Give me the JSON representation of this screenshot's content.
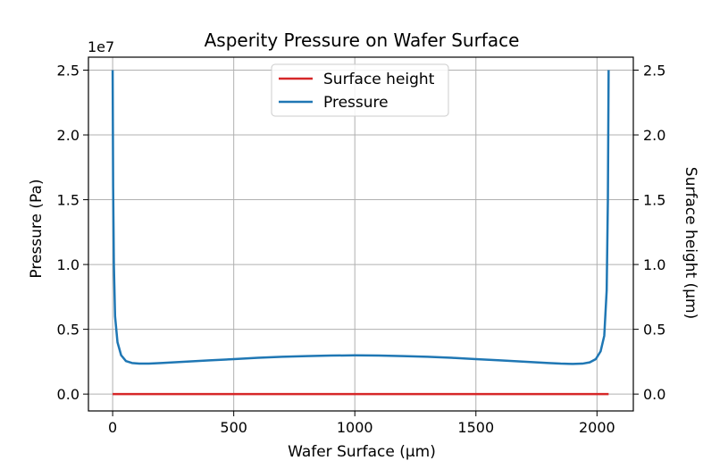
{
  "chart_data": {
    "type": "line",
    "title": "Asperity Pressure on Wafer Surface",
    "xlabel": "Wafer Surface (µm)",
    "ylabel_left": "Pressure (Pa)",
    "ylabel_right": "Surface height (µm)",
    "offset_text": "1e7",
    "xlim": [
      -100,
      2150
    ],
    "ylim_left": [
      -0.13,
      2.6
    ],
    "ylim_right": [
      -0.13,
      2.6
    ],
    "x_ticks": [
      0,
      500,
      1000,
      1500,
      2000
    ],
    "x_tick_labels": [
      "0",
      "500",
      "1000",
      "1500",
      "2000"
    ],
    "y_ticks": [
      0.0,
      0.5,
      1.0,
      1.5,
      2.0,
      2.5
    ],
    "y_tick_labels": [
      "0.0",
      "0.5",
      "1.0",
      "1.5",
      "2.0",
      "2.5"
    ],
    "grid": true,
    "legend_position": "top-center",
    "series": [
      {
        "name": "Surface height",
        "color": "#d62728",
        "axis": "right",
        "x": [
          0,
          2048
        ],
        "y": [
          0.0,
          0.0
        ]
      },
      {
        "name": "Pressure",
        "color": "#1f77b4",
        "axis": "left",
        "x": [
          0,
          2,
          5,
          10,
          20,
          35,
          55,
          80,
          110,
          150,
          200,
          300,
          400,
          500,
          600,
          700,
          800,
          900,
          1000,
          1100,
          1200,
          1300,
          1400,
          1500,
          1600,
          1700,
          1800,
          1850,
          1900,
          1940,
          1970,
          1995,
          2015,
          2030,
          2040,
          2045,
          2048
        ],
        "y": [
          2.5,
          1.6,
          1.0,
          0.6,
          0.4,
          0.3,
          0.255,
          0.24,
          0.235,
          0.235,
          0.24,
          0.25,
          0.26,
          0.27,
          0.28,
          0.288,
          0.293,
          0.297,
          0.299,
          0.297,
          0.293,
          0.288,
          0.28,
          0.27,
          0.26,
          0.25,
          0.24,
          0.235,
          0.233,
          0.235,
          0.245,
          0.27,
          0.33,
          0.45,
          0.8,
          1.5,
          2.5
        ]
      }
    ]
  }
}
